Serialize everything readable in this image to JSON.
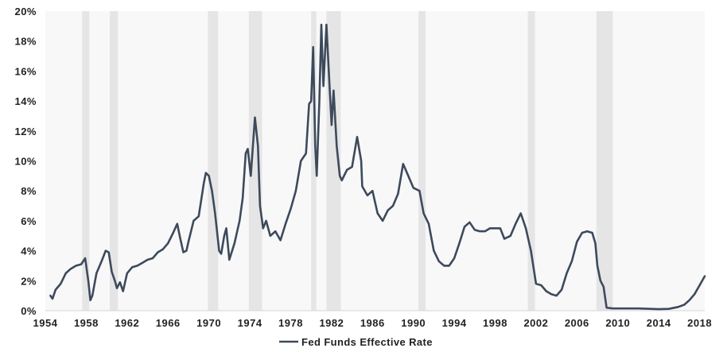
{
  "chart_data": {
    "type": "line",
    "title": "",
    "xlabel": "",
    "ylabel": "",
    "xlim": [
      1954,
      2018.5
    ],
    "ylim": [
      0,
      20
    ],
    "grid": false,
    "legend": "bottom",
    "colors": {
      "line": "#3d4a5c",
      "recession": "#e5e5e5",
      "plot_bg": "#f8f8f8"
    },
    "x_ticks": [
      1954,
      1958,
      1962,
      1966,
      1970,
      1974,
      1978,
      1982,
      1986,
      1990,
      1994,
      1998,
      2002,
      2006,
      2010,
      2014,
      2018
    ],
    "x_tick_labels": [
      "1954",
      "1958",
      "1962",
      "1966",
      "1970",
      "1974",
      "1978",
      "1982",
      "1986",
      "1990",
      "1994",
      "1998",
      "2002",
      "2006",
      "2010",
      "2014",
      "2018"
    ],
    "y_ticks": [
      0,
      2,
      4,
      6,
      8,
      10,
      12,
      14,
      16,
      18,
      20
    ],
    "y_tick_labels": [
      "0%",
      "2%",
      "4%",
      "6%",
      "8%",
      "10%",
      "12%",
      "14%",
      "16%",
      "18%",
      "20%"
    ],
    "recessions": [
      [
        1957.6,
        1958.3
      ],
      [
        1960.3,
        1961.1
      ],
      [
        1969.9,
        1970.9
      ],
      [
        1973.9,
        1975.2
      ],
      [
        1980.0,
        1980.5
      ],
      [
        1981.5,
        1982.9
      ],
      [
        1990.5,
        1991.2
      ],
      [
        2001.2,
        2001.9
      ],
      [
        2007.9,
        2009.5
      ]
    ],
    "series": [
      {
        "name": "Fed Funds Effective Rate",
        "points": [
          [
            1954.5,
            1.0
          ],
          [
            1954.7,
            0.8
          ],
          [
            1955.0,
            1.4
          ],
          [
            1955.5,
            1.8
          ],
          [
            1956.0,
            2.5
          ],
          [
            1956.5,
            2.8
          ],
          [
            1957.0,
            3.0
          ],
          [
            1957.5,
            3.1
          ],
          [
            1957.9,
            3.5
          ],
          [
            1958.2,
            2.0
          ],
          [
            1958.4,
            0.7
          ],
          [
            1958.6,
            1.0
          ],
          [
            1959.0,
            2.5
          ],
          [
            1959.5,
            3.3
          ],
          [
            1959.9,
            4.0
          ],
          [
            1960.2,
            3.9
          ],
          [
            1960.5,
            2.6
          ],
          [
            1960.8,
            2.0
          ],
          [
            1961.0,
            1.5
          ],
          [
            1961.3,
            1.9
          ],
          [
            1961.6,
            1.3
          ],
          [
            1962.0,
            2.5
          ],
          [
            1962.5,
            2.9
          ],
          [
            1963.0,
            3.0
          ],
          [
            1963.5,
            3.2
          ],
          [
            1964.0,
            3.4
          ],
          [
            1964.5,
            3.5
          ],
          [
            1965.0,
            3.9
          ],
          [
            1965.5,
            4.1
          ],
          [
            1966.0,
            4.5
          ],
          [
            1966.5,
            5.2
          ],
          [
            1966.9,
            5.8
          ],
          [
            1967.2,
            4.8
          ],
          [
            1967.5,
            3.9
          ],
          [
            1967.8,
            4.0
          ],
          [
            1968.0,
            4.6
          ],
          [
            1968.5,
            6.0
          ],
          [
            1969.0,
            6.3
          ],
          [
            1969.5,
            8.5
          ],
          [
            1969.7,
            9.2
          ],
          [
            1970.0,
            9.0
          ],
          [
            1970.3,
            8.0
          ],
          [
            1970.6,
            6.5
          ],
          [
            1971.0,
            4.0
          ],
          [
            1971.2,
            3.8
          ],
          [
            1971.5,
            5.0
          ],
          [
            1971.7,
            5.5
          ],
          [
            1972.0,
            3.4
          ],
          [
            1972.5,
            4.5
          ],
          [
            1973.0,
            6.0
          ],
          [
            1973.3,
            7.5
          ],
          [
            1973.6,
            10.5
          ],
          [
            1973.8,
            10.8
          ],
          [
            1974.1,
            9.0
          ],
          [
            1974.5,
            12.9
          ],
          [
            1974.8,
            11.0
          ],
          [
            1975.0,
            7.0
          ],
          [
            1975.3,
            5.5
          ],
          [
            1975.6,
            6.0
          ],
          [
            1976.0,
            5.0
          ],
          [
            1976.5,
            5.3
          ],
          [
            1977.0,
            4.7
          ],
          [
            1977.5,
            5.8
          ],
          [
            1978.0,
            6.8
          ],
          [
            1978.5,
            8.0
          ],
          [
            1979.0,
            10.0
          ],
          [
            1979.5,
            10.5
          ],
          [
            1979.8,
            13.8
          ],
          [
            1980.0,
            14.0
          ],
          [
            1980.2,
            17.6
          ],
          [
            1980.4,
            11.0
          ],
          [
            1980.55,
            9.0
          ],
          [
            1980.8,
            14.0
          ],
          [
            1981.0,
            19.1
          ],
          [
            1981.2,
            15.0
          ],
          [
            1981.5,
            19.1
          ],
          [
            1981.8,
            15.0
          ],
          [
            1982.0,
            12.4
          ],
          [
            1982.2,
            14.7
          ],
          [
            1982.5,
            11.0
          ],
          [
            1982.8,
            9.0
          ],
          [
            1983.0,
            8.7
          ],
          [
            1983.5,
            9.4
          ],
          [
            1984.0,
            9.6
          ],
          [
            1984.5,
            11.6
          ],
          [
            1984.9,
            10.0
          ],
          [
            1985.0,
            8.3
          ],
          [
            1985.5,
            7.7
          ],
          [
            1986.0,
            8.0
          ],
          [
            1986.5,
            6.5
          ],
          [
            1987.0,
            6.0
          ],
          [
            1987.5,
            6.7
          ],
          [
            1988.0,
            7.0
          ],
          [
            1988.5,
            7.8
          ],
          [
            1989.0,
            9.8
          ],
          [
            1989.5,
            9.0
          ],
          [
            1990.0,
            8.2
          ],
          [
            1990.6,
            8.0
          ],
          [
            1991.0,
            6.5
          ],
          [
            1991.5,
            5.8
          ],
          [
            1992.0,
            4.0
          ],
          [
            1992.5,
            3.3
          ],
          [
            1993.0,
            3.0
          ],
          [
            1993.5,
            3.0
          ],
          [
            1994.0,
            3.5
          ],
          [
            1994.5,
            4.5
          ],
          [
            1995.0,
            5.6
          ],
          [
            1995.5,
            5.9
          ],
          [
            1996.0,
            5.4
          ],
          [
            1996.5,
            5.3
          ],
          [
            1997.0,
            5.3
          ],
          [
            1997.5,
            5.5
          ],
          [
            1998.0,
            5.5
          ],
          [
            1998.5,
            5.5
          ],
          [
            1998.9,
            4.8
          ],
          [
            1999.5,
            5.0
          ],
          [
            2000.0,
            5.8
          ],
          [
            2000.5,
            6.5
          ],
          [
            2001.0,
            5.5
          ],
          [
            2001.5,
            4.0
          ],
          [
            2002.0,
            1.8
          ],
          [
            2002.5,
            1.7
          ],
          [
            2003.0,
            1.3
          ],
          [
            2003.5,
            1.1
          ],
          [
            2004.0,
            1.0
          ],
          [
            2004.5,
            1.4
          ],
          [
            2005.0,
            2.5
          ],
          [
            2005.5,
            3.3
          ],
          [
            2006.0,
            4.6
          ],
          [
            2006.5,
            5.2
          ],
          [
            2007.0,
            5.3
          ],
          [
            2007.5,
            5.2
          ],
          [
            2007.8,
            4.5
          ],
          [
            2008.0,
            3.0
          ],
          [
            2008.3,
            2.0
          ],
          [
            2008.6,
            1.6
          ],
          [
            2008.9,
            0.2
          ],
          [
            2009.5,
            0.15
          ],
          [
            2010.0,
            0.15
          ],
          [
            2012.0,
            0.15
          ],
          [
            2014.0,
            0.1
          ],
          [
            2015.0,
            0.12
          ],
          [
            2015.9,
            0.25
          ],
          [
            2016.5,
            0.4
          ],
          [
            2017.0,
            0.7
          ],
          [
            2017.5,
            1.1
          ],
          [
            2018.0,
            1.7
          ],
          [
            2018.5,
            2.3
          ]
        ]
      }
    ]
  }
}
